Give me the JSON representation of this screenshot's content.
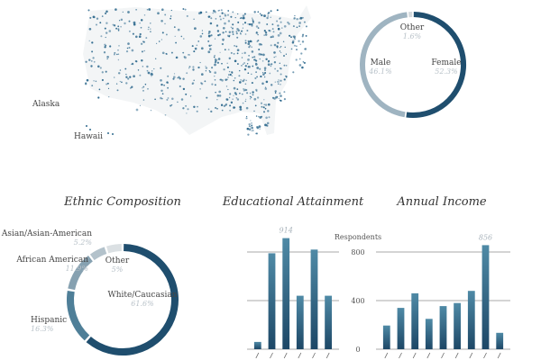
{
  "map": {
    "alaska_label": "Alaska",
    "hawaii_label": "Hawaii",
    "dot_color": "#2f6a8e"
  },
  "chart_data": [
    {
      "type": "pie",
      "style": "donut",
      "title": "",
      "slices": [
        {
          "label": "Female",
          "value": 52.3,
          "value_label": "52.3%",
          "color": "#1f4e6e"
        },
        {
          "label": "Male",
          "value": 46.1,
          "value_label": "46.1%",
          "color": "#9fb4c1"
        },
        {
          "label": "Other",
          "value": 1.6,
          "value_label": "1.6%",
          "color": "#d4d9dc"
        }
      ]
    },
    {
      "type": "pie",
      "style": "donut",
      "title": "Ethnic Composition",
      "slices": [
        {
          "label": "White/Caucasian",
          "value": 61.6,
          "value_label": "61.6%",
          "color": "#1f4e6e"
        },
        {
          "label": "Hispanic",
          "value": 16.3,
          "value_label": "16.3%",
          "color": "#4f7f98"
        },
        {
          "label": "African American",
          "value": 11.9,
          "value_label": "11.9%",
          "color": "#86a1b1"
        },
        {
          "label": "Asian/Asian-American",
          "value": 5.2,
          "value_label": "5.2%",
          "color": "#b3c2cb"
        },
        {
          "label": "Other",
          "value": 5,
          "value_label": "5%",
          "color": "#dbe0e3"
        }
      ]
    },
    {
      "type": "bar",
      "title": "Educational Attainment",
      "categories": [
        "c1",
        "c2",
        "c3",
        "c4",
        "c5",
        "c6"
      ],
      "values": [
        60,
        790,
        914,
        440,
        820,
        440
      ],
      "max_label": "914",
      "ylim": [
        0,
        1000
      ],
      "yticks": [
        0,
        400,
        800
      ],
      "ylabel": "Respondents"
    },
    {
      "type": "bar",
      "title": "Annual Income",
      "categories": [
        "c1",
        "c2",
        "c3",
        "c4",
        "c5",
        "c6",
        "c7",
        "c8",
        "c9"
      ],
      "values": [
        195,
        340,
        460,
        250,
        355,
        380,
        480,
        856,
        135
      ],
      "max_label": "856",
      "ylim": [
        0,
        1000
      ],
      "yticks": [
        "0",
        "400",
        "800"
      ]
    }
  ]
}
